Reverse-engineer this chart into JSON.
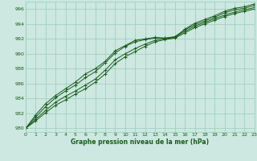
{
  "xlabel": "Graphe pression niveau de la mer (hPa)",
  "xlim": [
    0,
    23
  ],
  "ylim": [
    979.5,
    997.0
  ],
  "yticks": [
    980,
    982,
    984,
    986,
    988,
    990,
    992,
    994,
    996
  ],
  "xticks": [
    0,
    1,
    2,
    3,
    4,
    5,
    6,
    7,
    8,
    9,
    10,
    11,
    12,
    13,
    14,
    15,
    16,
    17,
    18,
    19,
    20,
    21,
    22,
    23
  ],
  "bg_color": "#cce8e0",
  "grid_color": "#99ccbb",
  "line_color": "#1a5c1a",
  "series": [
    [
      980.0,
      981.5,
      982.9,
      984.1,
      985.0,
      985.8,
      986.8,
      987.6,
      988.8,
      990.1,
      991.0,
      991.6,
      991.9,
      992.1,
      992.1,
      992.3,
      993.2,
      993.9,
      994.4,
      994.9,
      995.5,
      995.9,
      996.1,
      996.5
    ],
    [
      980.0,
      981.2,
      982.4,
      983.5,
      984.3,
      985.0,
      985.8,
      986.6,
      987.8,
      989.2,
      990.0,
      990.7,
      991.3,
      991.8,
      992.0,
      992.2,
      993.0,
      993.7,
      994.2,
      994.7,
      995.2,
      995.6,
      995.9,
      996.2
    ],
    [
      980.0,
      981.0,
      982.1,
      983.1,
      983.8,
      984.6,
      985.3,
      986.2,
      987.3,
      988.7,
      989.6,
      990.3,
      991.0,
      991.6,
      991.9,
      992.1,
      992.8,
      993.5,
      994.0,
      994.5,
      995.0,
      995.4,
      995.7,
      996.0
    ],
    [
      980.0,
      981.8,
      983.3,
      984.4,
      985.3,
      986.2,
      987.3,
      988.0,
      989.0,
      990.4,
      991.1,
      991.8,
      992.0,
      992.2,
      992.1,
      992.2,
      993.3,
      994.1,
      994.6,
      995.1,
      995.7,
      996.1,
      996.3,
      996.7
    ]
  ]
}
